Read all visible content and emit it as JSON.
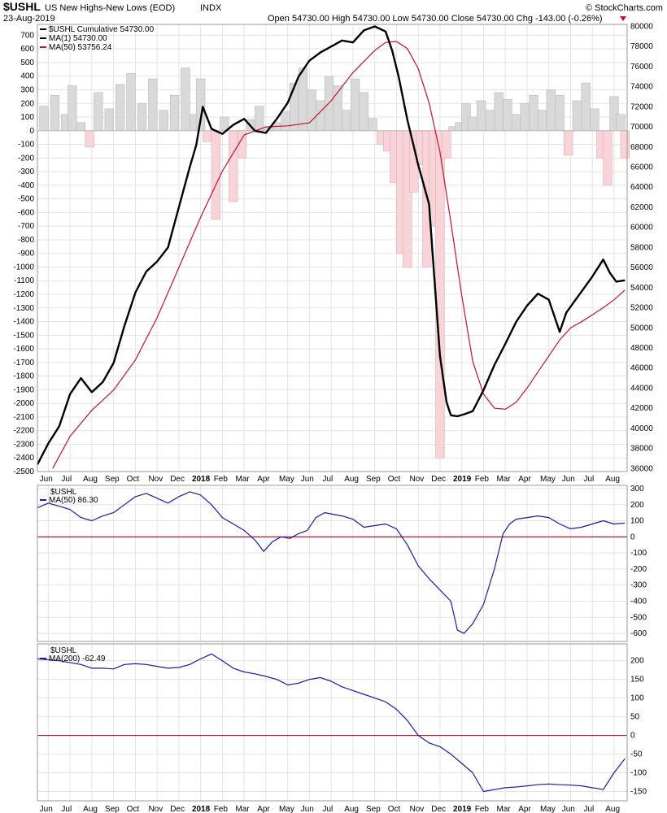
{
  "header": {
    "symbol": "$USHL",
    "description": "US New Highs-New Lows (EOD)",
    "exchange": "INDX",
    "date": "23-Aug-2019",
    "quote": "Open 54730.00  High 54730.00  Low 54730.00  Close 54730.00  Chg -143.00 (-0.26%)",
    "watermark": "© StockCharts.com",
    "colors": {
      "negative": "#c8102e"
    }
  },
  "x_axis": {
    "labels": [
      "Jun",
      "Jul",
      "Aug",
      "Sep",
      "Oct",
      "Nov",
      "Dec",
      "2018",
      "Feb",
      "Mar",
      "Apr",
      "May",
      "Jun",
      "Jul",
      "Aug",
      "Sep",
      "Oct",
      "Nov",
      "Dec",
      "2019",
      "Feb",
      "Mar",
      "Apr",
      "May",
      "Jun",
      "Jul",
      "Aug"
    ],
    "year_labels": [
      "2018",
      "2019"
    ],
    "t_start": 0,
    "t_end": 27.1
  },
  "chart_data": [
    {
      "type": "line",
      "panel": "price",
      "legend": [
        "$USHL Cumulative 54730.00",
        "MA(1) 54730.00",
        "MA(50) 53756.24"
      ],
      "left_axis": {
        "ylim": [
          -2500,
          780
        ],
        "ticks": [
          700,
          600,
          500,
          400,
          300,
          200,
          100,
          0,
          -100,
          -200,
          -300,
          -400,
          -500,
          -600,
          -700,
          -800,
          -900,
          -1000,
          -1100,
          -1200,
          -1300,
          -1400,
          -1500,
          -1600,
          -1700,
          -1800,
          -1900,
          -2000,
          -2100,
          -2200,
          -2300,
          -2400,
          -2500
        ]
      },
      "right_axis": {
        "ylim": [
          35700,
          80200
        ],
        "ticks": [
          80000,
          78000,
          76000,
          74000,
          72000,
          70000,
          68000,
          66000,
          64000,
          62000,
          60000,
          58000,
          56000,
          54000,
          52000,
          50000,
          48000,
          46000,
          44000,
          42000,
          40000,
          38000,
          36000
        ]
      },
      "daily_hl": {
        "x": [
          0.3,
          0.8,
          1.3,
          1.6,
          2.0,
          2.4,
          2.8,
          3.3,
          3.8,
          4.3,
          4.8,
          5.3,
          5.8,
          6.3,
          6.8,
          7.2,
          7.5,
          7.8,
          8.2,
          8.6,
          9.0,
          9.4,
          9.8,
          10.2,
          10.6,
          11.0,
          11.4,
          11.8,
          12.2,
          12.6,
          13.0,
          13.4,
          13.8,
          14.2,
          14.6,
          15.0,
          15.4,
          15.8,
          16.1,
          16.4,
          16.7,
          17.0,
          17.3,
          17.6,
          17.9,
          18.2,
          18.5,
          18.8,
          19.1,
          19.4,
          19.7,
          20.0,
          20.4,
          20.8,
          21.2,
          21.6,
          22.0,
          22.4,
          22.8,
          23.2,
          23.6,
          24.0,
          24.4,
          24.8,
          25.2,
          25.6,
          25.9,
          26.2,
          26.5,
          26.8,
          27.0
        ],
        "values": [
          180,
          260,
          120,
          330,
          60,
          -120,
          280,
          160,
          340,
          420,
          200,
          380,
          150,
          260,
          460,
          120,
          380,
          -80,
          -650,
          100,
          -520,
          -200,
          80,
          180,
          30,
          60,
          140,
          350,
          460,
          300,
          220,
          400,
          330,
          150,
          380,
          280,
          90,
          -100,
          -150,
          -380,
          -900,
          -1000,
          -450,
          -250,
          -1000,
          -700,
          -2400,
          -200,
          30,
          60,
          200,
          100,
          220,
          150,
          280,
          230,
          120,
          200,
          260,
          150,
          300,
          260,
          -180,
          220,
          350,
          160,
          -200,
          -400,
          250,
          120,
          -200
        ]
      },
      "ma50": {
        "x": [
          0.7,
          1.5,
          2.5,
          3.5,
          4.5,
          5.5,
          6.5,
          7.5,
          8.5,
          9.5,
          10.5,
          11.5,
          12.5,
          13.5,
          14.5,
          15.5,
          16.0,
          16.5,
          17.0,
          17.5,
          18.0,
          18.5,
          19.0,
          19.5,
          20.0,
          20.5,
          21.0,
          21.5,
          22.0,
          22.5,
          23.0,
          23.5,
          24.0,
          24.5,
          25.0,
          25.5,
          26.0,
          26.5,
          27.0
        ],
        "values": [
          36000,
          39200,
          41800,
          43800,
          46800,
          51000,
          56000,
          61000,
          65600,
          69200,
          70000,
          70100,
          70400,
          72600,
          75400,
          77600,
          78400,
          78500,
          77800,
          75800,
          72400,
          67500,
          60500,
          53200,
          46700,
          43400,
          42000,
          41900,
          42600,
          44000,
          45600,
          47200,
          48800,
          50000,
          50600,
          51300,
          52000,
          52800,
          53756
        ]
      },
      "ma1": {
        "x": [
          0,
          0.5,
          1.0,
          1.5,
          2.0,
          2.5,
          3.0,
          3.5,
          4.0,
          4.5,
          5.0,
          5.5,
          6.0,
          6.5,
          7.0,
          7.3,
          7.6,
          8.0,
          8.5,
          9.0,
          9.5,
          10.0,
          10.5,
          11.0,
          11.5,
          12.0,
          12.5,
          13.0,
          13.5,
          14.0,
          14.5,
          15.0,
          15.5,
          16.0,
          16.3,
          16.6,
          17.0,
          17.5,
          18.0,
          18.5,
          18.8,
          19.0,
          19.3,
          19.6,
          20.0,
          20.5,
          21.0,
          21.5,
          22.0,
          22.5,
          23.0,
          23.5,
          24.0,
          24.3,
          24.6,
          25.0,
          25.5,
          26.0,
          26.3,
          26.6,
          27.0
        ],
        "values": [
          36400,
          38500,
          40200,
          43400,
          45000,
          43600,
          44600,
          46500,
          50200,
          53500,
          55600,
          56600,
          58000,
          62000,
          66000,
          68200,
          72000,
          69800,
          69300,
          70200,
          70800,
          69600,
          69400,
          70800,
          72400,
          75000,
          76600,
          77400,
          78000,
          78600,
          78400,
          79600,
          80000,
          79500,
          77600,
          75000,
          70700,
          66200,
          62300,
          47200,
          42600,
          41300,
          41200,
          41400,
          41700,
          43800,
          46300,
          48400,
          50600,
          52200,
          53400,
          52800,
          49600,
          51500,
          52400,
          53600,
          55100,
          56800,
          55500,
          54600,
          54730
        ]
      }
    },
    {
      "type": "line",
      "panel": "ma50",
      "legend": [
        "$USHL",
        "MA(50) 86.30"
      ],
      "ylim": [
        -650,
        320
      ],
      "ticks": [
        300,
        200,
        100,
        0,
        -100,
        -200,
        -300,
        -400,
        -500,
        -600
      ],
      "x": [
        0,
        0.5,
        1.0,
        1.5,
        2.0,
        2.5,
        3.0,
        3.5,
        4.0,
        4.5,
        5.0,
        5.5,
        6.0,
        6.5,
        7.0,
        7.5,
        8.0,
        8.5,
        9.0,
        9.5,
        10.0,
        10.4,
        10.8,
        11.2,
        11.6,
        12.0,
        12.4,
        12.8,
        13.2,
        13.6,
        14.0,
        14.5,
        15.0,
        15.5,
        16.0,
        16.5,
        17.0,
        17.5,
        18.0,
        18.5,
        19.0,
        19.3,
        19.6,
        20.0,
        20.5,
        21.0,
        21.4,
        21.7,
        22.0,
        22.5,
        23.0,
        23.5,
        24.0,
        24.5,
        25.0,
        25.5,
        26.0,
        26.5,
        27.0
      ],
      "values": [
        180,
        210,
        190,
        170,
        120,
        100,
        130,
        150,
        200,
        250,
        270,
        240,
        210,
        250,
        280,
        260,
        200,
        120,
        80,
        40,
        -20,
        -90,
        -30,
        0,
        -10,
        20,
        40,
        120,
        150,
        140,
        130,
        110,
        60,
        70,
        80,
        50,
        -50,
        -180,
        -260,
        -330,
        -400,
        -580,
        -600,
        -540,
        -420,
        -200,
        20,
        80,
        110,
        120,
        130,
        120,
        80,
        50,
        60,
        80,
        100,
        80,
        86
      ]
    },
    {
      "type": "line",
      "panel": "ma200",
      "legend": [
        "$USHL",
        "MA(200) -62.49"
      ],
      "ylim": [
        -175,
        245
      ],
      "ticks": [
        200,
        150,
        100,
        50,
        0,
        -50,
        -100,
        -150
      ],
      "x": [
        0,
        1.0,
        2.0,
        2.5,
        3.0,
        3.5,
        4.0,
        4.5,
        5.0,
        5.5,
        6.0,
        6.5,
        7.0,
        7.5,
        8.0,
        8.5,
        9.0,
        9.5,
        10.0,
        10.5,
        11.0,
        11.5,
        12.0,
        12.5,
        13.0,
        13.5,
        14.0,
        14.5,
        15.0,
        15.5,
        16.0,
        16.5,
        17.0,
        17.5,
        18.0,
        18.5,
        19.0,
        19.5,
        20.0,
        20.5,
        21.0,
        21.5,
        22.0,
        22.5,
        23.0,
        23.5,
        24.0,
        24.5,
        25.0,
        25.5,
        26.0,
        26.5,
        27.0
      ],
      "values": [
        205,
        200,
        190,
        180,
        180,
        178,
        190,
        192,
        190,
        185,
        180,
        182,
        190,
        205,
        218,
        200,
        180,
        170,
        165,
        158,
        150,
        135,
        140,
        150,
        155,
        145,
        130,
        120,
        110,
        100,
        90,
        70,
        40,
        0,
        -20,
        -30,
        -50,
        -75,
        -100,
        -150,
        -145,
        -140,
        -138,
        -135,
        -132,
        -130,
        -132,
        -133,
        -135,
        -140,
        -145,
        -100,
        -62
      ]
    }
  ]
}
